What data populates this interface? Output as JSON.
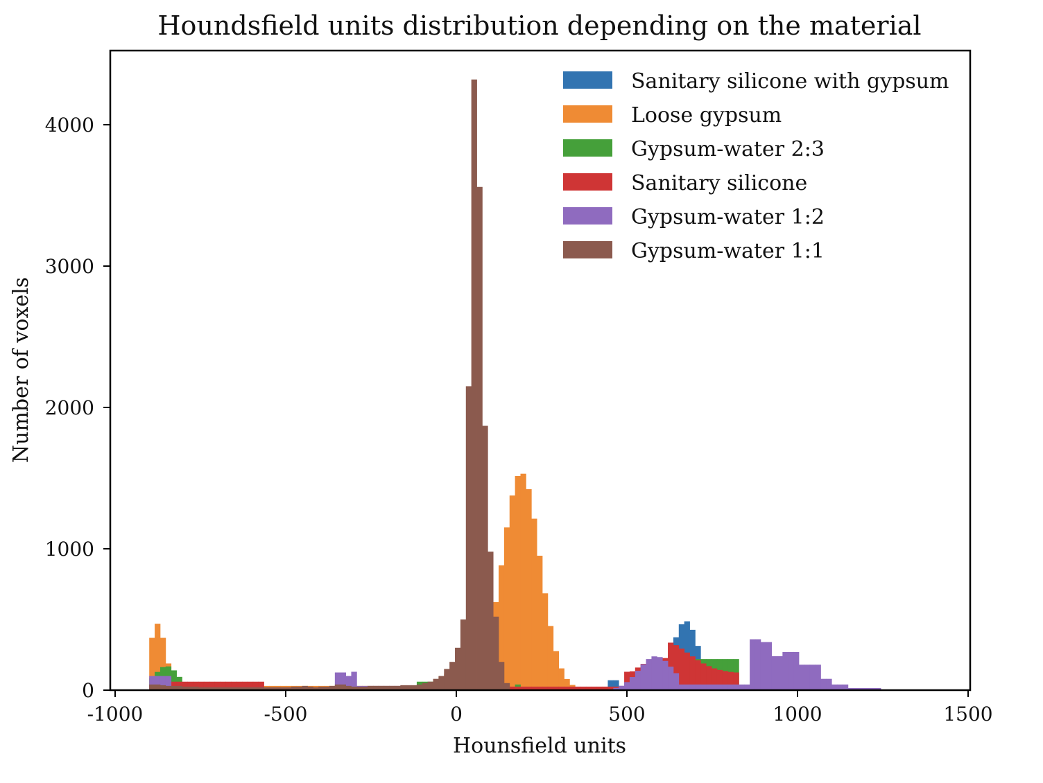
{
  "chart_data": {
    "type": "histogram",
    "title": "Houndsfield units distribution depending on the material",
    "xlabel": "Hounsfield units",
    "ylabel": "Number of voxels",
    "xlim": [
      -1000,
      1500
    ],
    "ylim": [
      0,
      4500
    ],
    "xticks": [
      -1000,
      -500,
      0,
      500,
      1000,
      1500
    ],
    "xtick_labels": [
      "-1000",
      "-500",
      "0",
      "500",
      "1000",
      "1500"
    ],
    "yticks": [
      0,
      1000,
      2000,
      3000,
      4000
    ],
    "ytick_labels": [
      "0",
      "1000",
      "2000",
      "3000",
      "4000"
    ],
    "legend_position": "top-right",
    "bin_start": -900,
    "bin_width": 16,
    "series": [
      {
        "name": "Sanitary silicone with gypsum",
        "color": "#3274b1",
        "values": [
          0,
          0,
          0,
          0,
          0,
          0,
          0,
          0,
          0,
          0,
          0,
          0,
          0,
          0,
          0,
          0,
          0,
          0,
          0,
          0,
          0,
          0,
          0,
          0,
          0,
          0,
          0,
          0,
          0,
          0,
          0,
          0,
          0,
          0,
          0,
          0,
          0,
          0,
          0,
          0,
          0,
          0,
          0,
          0,
          0,
          0,
          0,
          0,
          0,
          0,
          0,
          0,
          0,
          0,
          0,
          0,
          0,
          0,
          0,
          0,
          0,
          0,
          0,
          0,
          0,
          0,
          0,
          0,
          0,
          0,
          0,
          0,
          0,
          0,
          0,
          0,
          0,
          0,
          0,
          0,
          0,
          0,
          0,
          0,
          0,
          0,
          0,
          0,
          0,
          0,
          0,
          0,
          0,
          0,
          0,
          0,
          0,
          0,
          0,
          0,
          0,
          0,
          0,
          0,
          0,
          0,
          0,
          0,
          0,
          0,
          0,
          0,
          0,
          0,
          0,
          0,
          0,
          0,
          0,
          0,
          0,
          0,
          0,
          0,
          0,
          0,
          0,
          0,
          0,
          0,
          0,
          0,
          0,
          0,
          0,
          0,
          0,
          0
        ]
      },
      {
        "name": "Loose gypsum",
        "color": "#ef8b34",
        "values": [
          0
        ]
      },
      {
        "name": "Gypsum-water 2:3",
        "color": "#45a03a",
        "values": [
          0
        ]
      },
      {
        "name": "Sanitary silicone",
        "color": "#cf3535",
        "values": [
          0
        ]
      },
      {
        "name": "Gypsum-water 1:2",
        "color": "#8f6bbf",
        "values": [
          0
        ]
      },
      {
        "name": "Gypsum-water 1:1",
        "color": "#8b5a4e",
        "values": [
          0
        ]
      }
    ],
    "peaks": [
      {
        "series": "Gypsum-water 1:1",
        "hu": [
          -900,
          -884,
          -868,
          -852,
          -836,
          -820,
          -804,
          -788,
          -772,
          -756,
          -740,
          -724,
          -708,
          -692,
          -676,
          -660,
          -644,
          -628,
          -612,
          -596,
          -580,
          -564,
          -548,
          -532,
          -516,
          -500,
          -484,
          -468,
          -452,
          -436,
          -420,
          -404,
          -388,
          -372,
          -356,
          -340,
          -324,
          -308,
          -292,
          -276,
          -260,
          -244,
          -228,
          -212,
          -196,
          -180,
          -164,
          -148,
          -132,
          -116,
          -100,
          -84,
          -68,
          -52,
          -36,
          -20,
          -4,
          12,
          28,
          44,
          60,
          76,
          92,
          108,
          124,
          140,
          156,
          172,
          188,
          204,
          220,
          236,
          252,
          268,
          284,
          300,
          316,
          332,
          348,
          364,
          380
        ],
        "counts": [
          40,
          40,
          35,
          30,
          30,
          30,
          25,
          25,
          25,
          20,
          20,
          20,
          20,
          20,
          20,
          20,
          20,
          20,
          20,
          20,
          20,
          20,
          20,
          20,
          20,
          20,
          25,
          25,
          30,
          25,
          20,
          25,
          25,
          30,
          40,
          40,
          30,
          25,
          25,
          25,
          30,
          30,
          30,
          30,
          30,
          30,
          35,
          35,
          35,
          40,
          50,
          60,
          80,
          100,
          150,
          200,
          300,
          500,
          2150,
          4320,
          3560,
          1870,
          980,
          520,
          200,
          50,
          0,
          0,
          0,
          0,
          0,
          0,
          0,
          0,
          0,
          0,
          0,
          0,
          0,
          0,
          0
        ]
      }
    ]
  }
}
